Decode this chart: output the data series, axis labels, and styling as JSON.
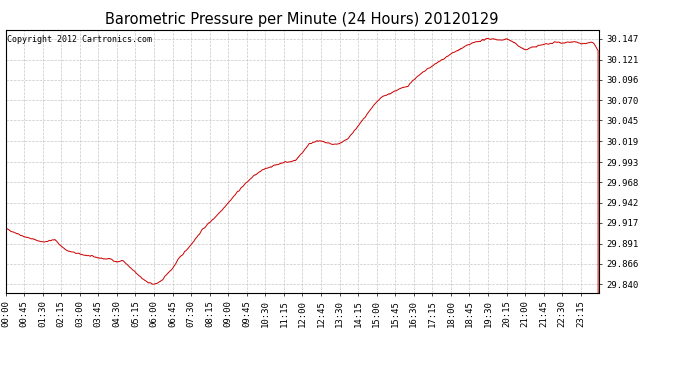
{
  "title": "Barometric Pressure per Minute (24 Hours) 20120129",
  "copyright_text": "Copyright 2012 Cartronics.com",
  "line_color": "#cc0000",
  "background_color": "#ffffff",
  "plot_bg_color": "#ffffff",
  "grid_color": "#c8c8c8",
  "y_ticks": [
    29.84,
    29.866,
    29.891,
    29.917,
    29.942,
    29.968,
    29.993,
    30.019,
    30.045,
    30.07,
    30.096,
    30.121,
    30.147
  ],
  "ylim": [
    29.83,
    30.158
  ],
  "x_tick_labels": [
    "00:00",
    "00:45",
    "01:30",
    "02:15",
    "03:00",
    "03:45",
    "04:30",
    "05:15",
    "06:00",
    "06:45",
    "07:30",
    "08:15",
    "09:00",
    "09:45",
    "10:30",
    "11:15",
    "12:00",
    "12:45",
    "13:30",
    "14:15",
    "15:00",
    "15:45",
    "16:30",
    "17:15",
    "18:00",
    "18:45",
    "19:30",
    "20:15",
    "21:00",
    "21:45",
    "22:30",
    "23:15"
  ],
  "title_fontsize": 10.5,
  "tick_fontsize": 6.5,
  "copyright_fontsize": 6.0,
  "waypoints": [
    [
      0,
      29.91
    ],
    [
      45,
      29.9
    ],
    [
      90,
      29.893
    ],
    [
      120,
      29.896
    ],
    [
      135,
      29.888
    ],
    [
      150,
      29.882
    ],
    [
      165,
      29.88
    ],
    [
      180,
      29.878
    ],
    [
      210,
      29.875
    ],
    [
      240,
      29.872
    ],
    [
      255,
      29.872
    ],
    [
      270,
      29.868
    ],
    [
      285,
      29.87
    ],
    [
      300,
      29.862
    ],
    [
      315,
      29.855
    ],
    [
      330,
      29.848
    ],
    [
      345,
      29.843
    ],
    [
      360,
      29.84
    ],
    [
      375,
      29.843
    ],
    [
      390,
      29.852
    ],
    [
      405,
      29.86
    ],
    [
      420,
      29.872
    ],
    [
      450,
      29.89
    ],
    [
      480,
      29.91
    ],
    [
      510,
      29.925
    ],
    [
      540,
      29.942
    ],
    [
      570,
      29.96
    ],
    [
      600,
      29.975
    ],
    [
      630,
      29.985
    ],
    [
      660,
      29.99
    ],
    [
      675,
      29.993
    ],
    [
      690,
      29.993
    ],
    [
      705,
      29.996
    ],
    [
      720,
      30.005
    ],
    [
      735,
      30.015
    ],
    [
      750,
      30.019
    ],
    [
      765,
      30.019
    ],
    [
      780,
      30.017
    ],
    [
      795,
      30.015
    ],
    [
      810,
      30.016
    ],
    [
      825,
      30.02
    ],
    [
      840,
      30.028
    ],
    [
      855,
      30.038
    ],
    [
      870,
      30.048
    ],
    [
      885,
      30.058
    ],
    [
      900,
      30.068
    ],
    [
      915,
      30.075
    ],
    [
      930,
      30.078
    ],
    [
      945,
      30.082
    ],
    [
      960,
      30.085
    ],
    [
      975,
      30.088
    ],
    [
      990,
      30.096
    ],
    [
      1005,
      30.102
    ],
    [
      1020,
      30.108
    ],
    [
      1035,
      30.113
    ],
    [
      1050,
      30.118
    ],
    [
      1065,
      30.123
    ],
    [
      1080,
      30.128
    ],
    [
      1095,
      30.132
    ],
    [
      1110,
      30.136
    ],
    [
      1125,
      30.14
    ],
    [
      1140,
      30.143
    ],
    [
      1155,
      30.145
    ],
    [
      1170,
      30.147
    ],
    [
      1185,
      30.147
    ],
    [
      1200,
      30.145
    ],
    [
      1215,
      30.147
    ],
    [
      1230,
      30.143
    ],
    [
      1245,
      30.138
    ],
    [
      1260,
      30.133
    ],
    [
      1275,
      30.136
    ],
    [
      1290,
      30.138
    ],
    [
      1305,
      30.14
    ],
    [
      1320,
      30.141
    ],
    [
      1335,
      30.143
    ],
    [
      1350,
      30.142
    ],
    [
      1365,
      30.143
    ],
    [
      1380,
      30.143
    ],
    [
      1395,
      30.141
    ],
    [
      1410,
      30.141
    ],
    [
      1425,
      30.143
    ],
    [
      1439,
      30.13
    ]
  ]
}
